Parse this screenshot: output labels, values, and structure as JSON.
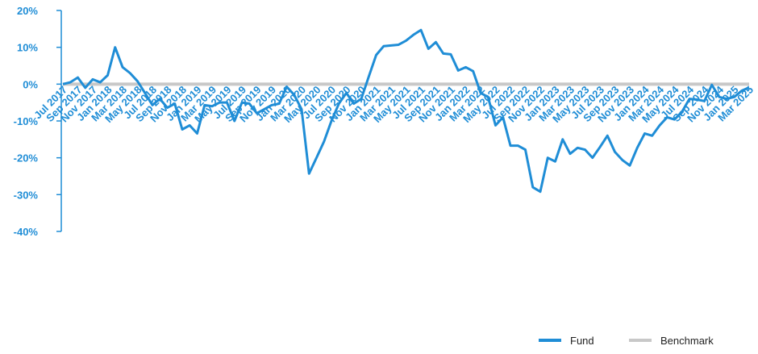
{
  "chart_data": {
    "type": "line",
    "categories": [
      "Jul 2017",
      null,
      "Sep 2017",
      null,
      "Nov 2017",
      null,
      "Jan 2018",
      null,
      "Mar 2018",
      null,
      "May 2018",
      null,
      "Jul 2018",
      null,
      "Sep 2018",
      null,
      "Nov 2018",
      null,
      "Jan 2019",
      null,
      "Mar 2019",
      null,
      "May 2019",
      null,
      "Jul 2019",
      null,
      "Sep 2019",
      null,
      "Nov 2019",
      null,
      "Jan 2020",
      null,
      "Mar 2020",
      null,
      "May 2020",
      null,
      "Jul 2020",
      null,
      "Sep 2020",
      null,
      "Nov 2020",
      null,
      "Jan 2021",
      null,
      "Mar 2021",
      null,
      "May 2021",
      null,
      "Jul 2021",
      null,
      "Sep 2021",
      null,
      "Nov 2021",
      null,
      "Jan 2022",
      null,
      "Mar 2022",
      null,
      "May 2022",
      null,
      "Jul 2022",
      null,
      "Sep 2022",
      null,
      "Nov 2022",
      null,
      "Jan 2023",
      null,
      "Mar 2023",
      null,
      "May 2023",
      null,
      "Jul 2023",
      null,
      "Sep 2023",
      null,
      "Nov 2023",
      null,
      "Jan 2024",
      null,
      "Mar 2024",
      null,
      "May 2024",
      null,
      "Jul 2024",
      null,
      "Sep 2024",
      null,
      "Nov 2024",
      null,
      "Jan 2025",
      null,
      "Mar 2025"
    ],
    "series": [
      {
        "name": "Fund",
        "color": "#1f8dd6",
        "values": [
          0,
          0.5,
          1.8,
          -1,
          1.3,
          0.5,
          2.4,
          10,
          4.6,
          3,
          0.8,
          -2.4,
          -5.7,
          -4,
          -6.4,
          -5.3,
          -12.3,
          -11.2,
          -13.4,
          -5.7,
          -6,
          -5,
          -5,
          -10,
          -5,
          -5.3,
          -7.9,
          -6.8,
          -5.7,
          -5.3,
          -0.7,
          -2.9,
          -6.8,
          -24.3,
          -20,
          -15.6,
          -10,
          -5.3,
          -2.4,
          -5.3,
          -4,
          2,
          7.9,
          10.3,
          10.5,
          10.7,
          11.8,
          13.4,
          14.7,
          9.6,
          11.4,
          8.3,
          8.1,
          3.7,
          4.6,
          3.5,
          -2.4,
          -3.5,
          -11.2,
          -9,
          -16.7,
          -16.7,
          -17.8,
          -28,
          -29.2,
          -20,
          -21,
          -15,
          -18.9,
          -17.3,
          -17.8,
          -20,
          -17.1,
          -14,
          -18.4,
          -20.6,
          -22.1,
          -17.3,
          -13.4,
          -14,
          -11.2,
          -9,
          -9.6,
          -7.5,
          -4,
          -4.2,
          -4.6,
          -0.2,
          -3.5,
          -4,
          -3.5,
          -1.8,
          -0.9
        ]
      },
      {
        "name": "Benchmark",
        "color": "#c8c8c8",
        "values": [
          0,
          0,
          0,
          0,
          0,
          0,
          0,
          0,
          0,
          0,
          0,
          0,
          0,
          0,
          0,
          0,
          0,
          0,
          0,
          0,
          0,
          0,
          0,
          0,
          0,
          0,
          0,
          0,
          0,
          0,
          0,
          0,
          0,
          0,
          0,
          0,
          0,
          0,
          0,
          0,
          0,
          0,
          0,
          0,
          0,
          0,
          0,
          0,
          0,
          0,
          0,
          0,
          0,
          0,
          0,
          0,
          0,
          0,
          0,
          0,
          0,
          0,
          0,
          0,
          0,
          0,
          0,
          0,
          0,
          0,
          0,
          0,
          0,
          0,
          0,
          0,
          0,
          0,
          0,
          0,
          0,
          0,
          0,
          0,
          0,
          0,
          0,
          0,
          0,
          0,
          0,
          0,
          0
        ]
      }
    ],
    "ylim": [
      -40,
      20
    ],
    "yticks": [
      {
        "value": 20,
        "label": "20%"
      },
      {
        "value": 10,
        "label": "10%"
      },
      {
        "value": 0,
        "label": "0%"
      },
      {
        "value": -10,
        "label": "-10%"
      },
      {
        "value": -20,
        "label": "-20%"
      },
      {
        "value": -30,
        "label": "-30%"
      },
      {
        "value": -40,
        "label": "-40%"
      }
    ],
    "legend": "bottom-right"
  }
}
